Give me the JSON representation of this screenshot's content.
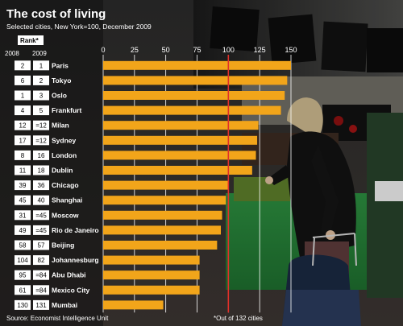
{
  "chart_data": {
    "type": "bar",
    "orientation": "horizontal",
    "title": "The cost of living",
    "subtitle": "Selected cities, New York=100, December 2009",
    "rank_header": "Rank*",
    "rank_years": [
      "2008",
      "2009"
    ],
    "categories": [
      "Paris",
      "Tokyo",
      "Oslo",
      "Frankfurt",
      "Milan",
      "Sydney",
      "London",
      "Dublin",
      "Chicago",
      "Shanghai",
      "Moscow",
      "Rio de Janeiro",
      "Beijing",
      "Johannesburg",
      "Abu Dhabi",
      "Mexico City",
      "Mumbai"
    ],
    "rank_2008": [
      "2",
      "6",
      "1",
      "4",
      "12",
      "17",
      "8",
      "11",
      "39",
      "45",
      "31",
      "49",
      "58",
      "104",
      "95",
      "61",
      "130"
    ],
    "rank_2009": [
      "1",
      "2",
      "3",
      "5",
      "=12",
      "=12",
      "16",
      "18",
      "36",
      "40",
      "=45",
      "=45",
      "57",
      "82",
      "=84",
      "=84",
      "131"
    ],
    "values": [
      150,
      147,
      145,
      142,
      124,
      123,
      122,
      119,
      100,
      98,
      95,
      94,
      91,
      77,
      77,
      77,
      48
    ],
    "xlim": [
      0,
      150
    ],
    "xticks": [
      0,
      25,
      50,
      75,
      100,
      125,
      150
    ],
    "grid": true,
    "reference_line": 100,
    "bar_color": "#f2a51a",
    "grid_color": "#ffffff",
    "reference_color": "#e0302a",
    "source": "Source: Economist Intelligence Unit",
    "footnote": "*Out of 132 cities"
  }
}
